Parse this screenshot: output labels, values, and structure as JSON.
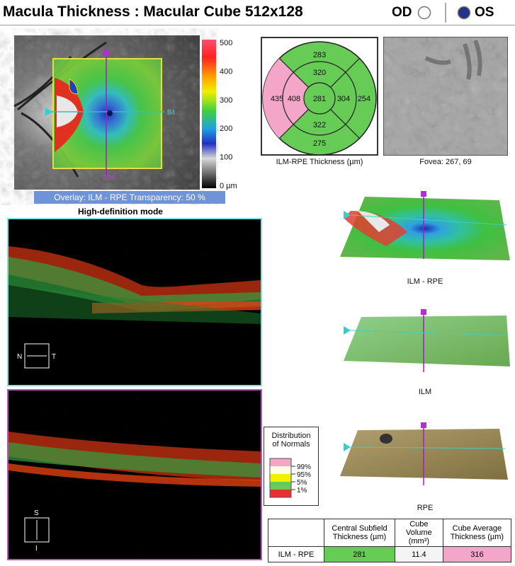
{
  "header": {
    "title": "Macula Thickness : Macular Cube 512x128",
    "od": "OD",
    "os": "OS"
  },
  "thickness_map": {
    "scale_labels": [
      "500",
      "400",
      "300",
      "200",
      "100",
      "0 µm"
    ],
    "marker_right": "84",
    "marker_bottom": "256",
    "overlay": "Overlay: ILM - RPE  Transparency: 50 %"
  },
  "bscan": {
    "mode": "High-definition mode",
    "scan1": {
      "left": "N",
      "right": "T"
    },
    "scan2": {
      "top": "S",
      "bottom": "I"
    }
  },
  "etdrs": {
    "outer_superior": "283",
    "inner_superior": "320",
    "outer_nasal": "435",
    "inner_nasal": "408",
    "center": "281",
    "inner_temporal": "304",
    "outer_temporal": "254",
    "inner_inferior": "322",
    "outer_inferior": "275",
    "caption": "ILM-RPE Thickness (µm)"
  },
  "fovea": {
    "caption": "Fovea: 267, 69"
  },
  "surfaces": [
    "ILM - RPE",
    "ILM",
    "RPE"
  ],
  "normals": {
    "title": [
      "Distribution",
      "of Normals"
    ],
    "labels": [
      "99%",
      "95%",
      "5%",
      "1%"
    ]
  },
  "table": {
    "header": [
      "Central Subfield Thickness (µm)",
      "Cube Volume (mm³)",
      "Cube Average Thickness (µm)"
    ],
    "rows": [
      [
        "ILM - RPE",
        "281",
        "11.4",
        "316"
      ]
    ]
  }
}
